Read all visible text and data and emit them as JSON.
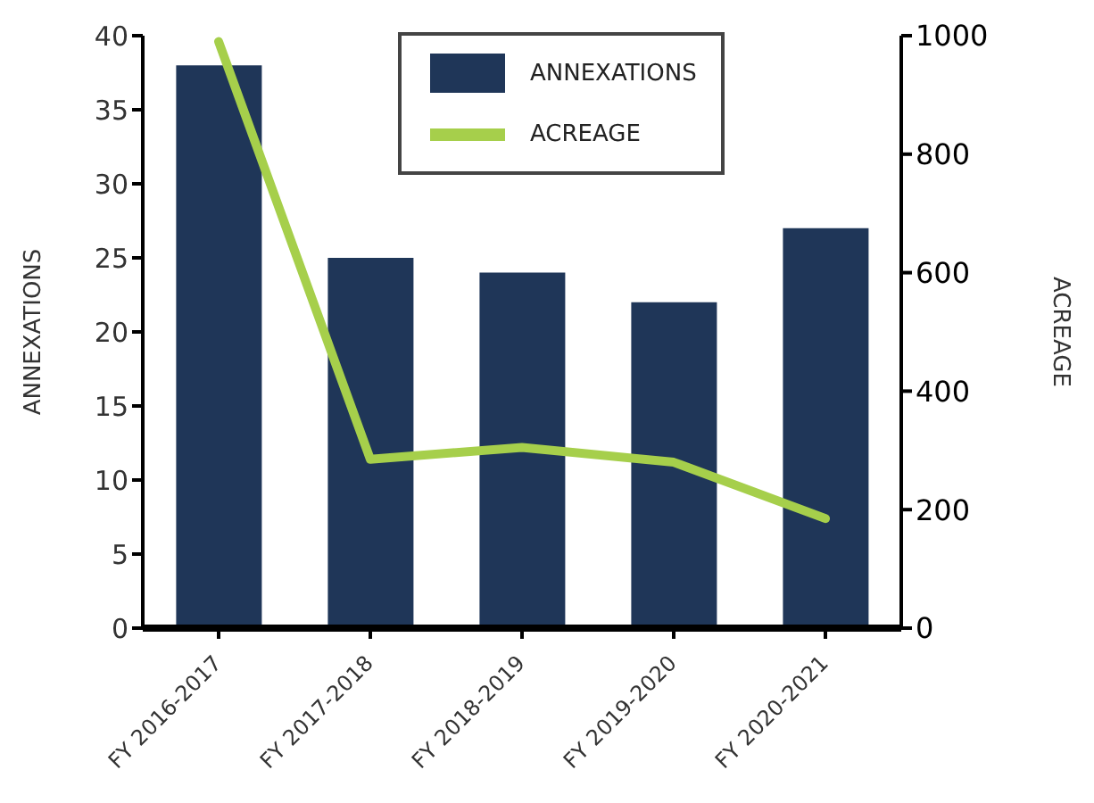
{
  "chart_data": {
    "type": "bar",
    "categories": [
      "FY 2016-2017",
      "FY 2017-2018",
      "FY 2018-2019",
      "FY 2019-2020",
      "FY 2020-2021"
    ],
    "series": [
      {
        "name": "ANNEXATIONS",
        "color": "#1f3658",
        "values": [
          38,
          25,
          24,
          22,
          27
        ]
      },
      {
        "name": "ACREAGE",
        "type": "line",
        "axis": "y2",
        "color": "#a6cf4b",
        "values": [
          990,
          285,
          305,
          280,
          185
        ]
      }
    ],
    "ylabel": "ANNEXATIONS",
    "y2label": "ACREAGE",
    "ylim": [
      0,
      40
    ],
    "yticks": [
      0,
      5,
      10,
      15,
      20,
      25,
      30,
      35,
      40
    ],
    "y2lim": [
      0,
      1000
    ],
    "y2ticks": [
      0,
      200,
      400,
      600,
      800,
      1000
    ],
    "legend": "top",
    "grid": false,
    "marker": "none",
    "line_style": "solid"
  }
}
